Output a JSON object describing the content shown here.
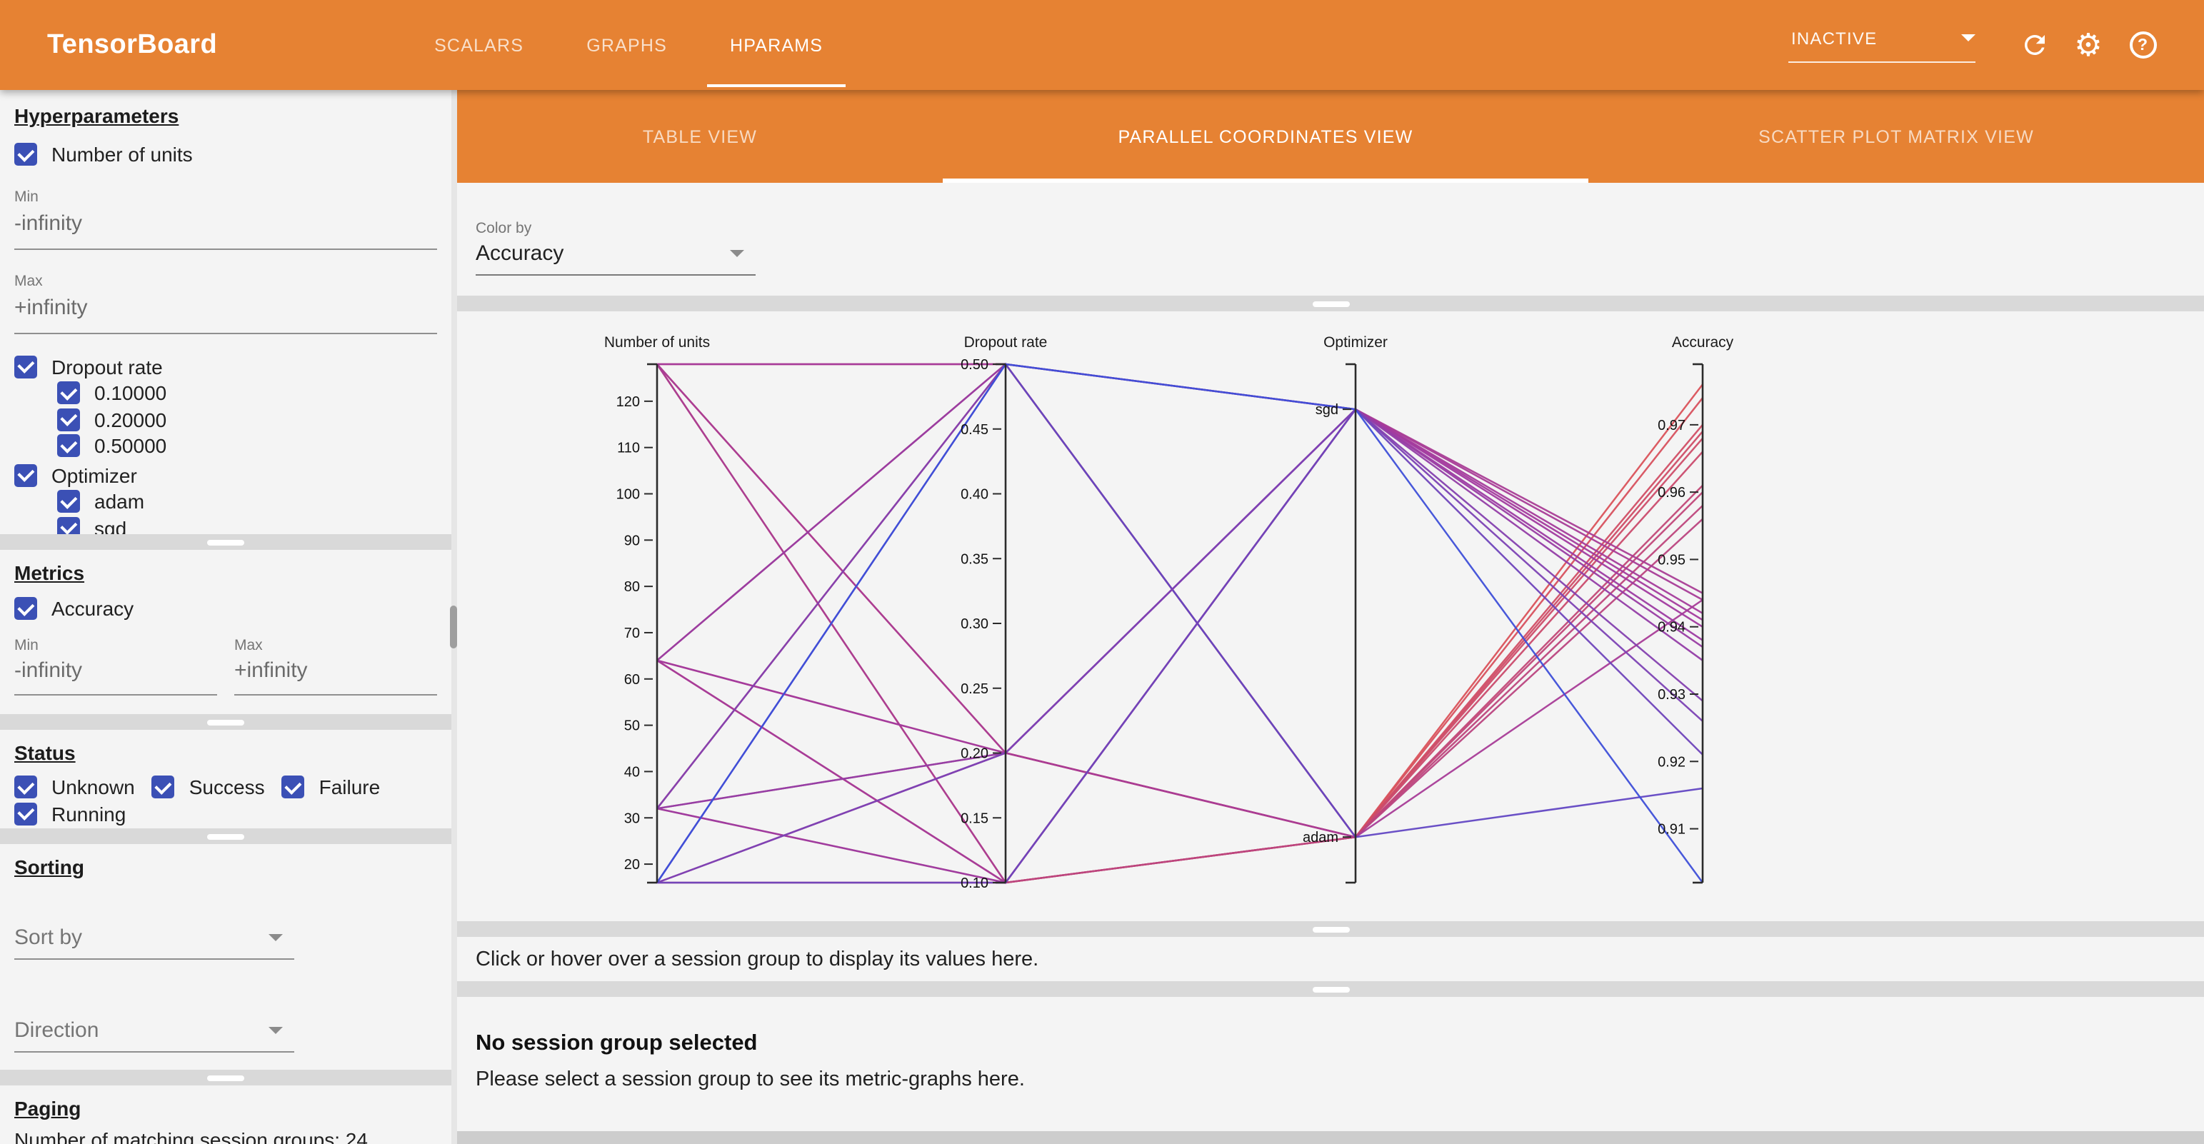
{
  "colors": {
    "accent": "#E68233",
    "checkbox": "#3B50B5",
    "card_bg": "#F4F4F4",
    "divider_bg": "#D9D9D9"
  },
  "toolbar": {
    "title": "TensorBoard",
    "tabs": [
      "SCALARS",
      "GRAPHS",
      "HPARAMS"
    ],
    "active_tab": "HPARAMS",
    "status_dropdown": "INACTIVE",
    "icons": [
      "refresh",
      "settings",
      "help"
    ],
    "help_glyph": "?",
    "gear_glyph": "⚙"
  },
  "sidebar": {
    "hyperparameters": {
      "title": "Hyperparameters",
      "number_of_units": {
        "label": "Number of units",
        "checked": true,
        "min_label": "Min",
        "min": "-infinity",
        "max_label": "Max",
        "max": "+infinity"
      },
      "dropout": {
        "label": "Dropout rate",
        "checked": true,
        "values": [
          "0.10000",
          "0.20000",
          "0.50000"
        ]
      },
      "optimizer": {
        "label": "Optimizer",
        "checked": true,
        "values": [
          "adam",
          "sgd"
        ]
      }
    },
    "metrics": {
      "title": "Metrics",
      "accuracy": {
        "label": "Accuracy",
        "checked": true,
        "min_label": "Min",
        "min": "-infinity",
        "max_label": "Max",
        "max": "+infinity"
      }
    },
    "status": {
      "title": "Status",
      "options": [
        {
          "label": "Unknown",
          "checked": true
        },
        {
          "label": "Success",
          "checked": true
        },
        {
          "label": "Failure",
          "checked": true
        },
        {
          "label": "Running",
          "checked": true
        }
      ]
    },
    "sorting": {
      "title": "Sorting",
      "sort_by_placeholder": "Sort by",
      "direction_placeholder": "Direction"
    },
    "paging": {
      "title": "Paging",
      "summary": "Number of matching session groups: 24"
    }
  },
  "main": {
    "view_tabs": [
      "TABLE VIEW",
      "PARALLEL COORDINATES VIEW",
      "SCATTER PLOT MATRIX VIEW"
    ],
    "active_view_tab": "PARALLEL COORDINATES VIEW",
    "color_by": {
      "label": "Color by",
      "value": "Accuracy"
    },
    "session_hint": "Click or hover over a session group to display its values here.",
    "empty_state": {
      "title": "No session group selected",
      "body": "Please select a session group to see its metric-graphs here."
    }
  },
  "chart_data": {
    "type": "parallel_coordinates",
    "color_by": "Accuracy",
    "legend_position": "none",
    "grid": false,
    "axes": [
      {
        "id": "units",
        "label": "Number of units",
        "type": "linear",
        "domain": [
          16,
          128
        ],
        "ticks": [
          {
            "v": 120,
            "label": "120"
          },
          {
            "v": 110,
            "label": "110"
          },
          {
            "v": 100,
            "label": "100"
          },
          {
            "v": 90,
            "label": "90"
          },
          {
            "v": 80,
            "label": "80"
          },
          {
            "v": 70,
            "label": "70"
          },
          {
            "v": 60,
            "label": "60"
          },
          {
            "v": 50,
            "label": "50"
          },
          {
            "v": 40,
            "label": "40"
          },
          {
            "v": 30,
            "label": "30"
          },
          {
            "v": 20,
            "label": "20"
          }
        ]
      },
      {
        "id": "dropout",
        "label": "Dropout rate",
        "type": "linear",
        "domain": [
          0.1,
          0.5
        ],
        "ticks": [
          {
            "v": 0.5,
            "label": "0.50"
          },
          {
            "v": 0.45,
            "label": "0.45"
          },
          {
            "v": 0.4,
            "label": "0.40"
          },
          {
            "v": 0.35,
            "label": "0.35"
          },
          {
            "v": 0.3,
            "label": "0.30"
          },
          {
            "v": 0.25,
            "label": "0.25"
          },
          {
            "v": 0.2,
            "label": "0.20"
          },
          {
            "v": 0.15,
            "label": "0.15"
          },
          {
            "v": 0.1,
            "label": "0.10"
          }
        ]
      },
      {
        "id": "optimizer",
        "label": "Optimizer",
        "type": "categorical",
        "categories": [
          {
            "v": "sgd",
            "pos": 0.087
          },
          {
            "v": "adam",
            "pos": 0.912
          }
        ]
      },
      {
        "id": "accuracy",
        "label": "Accuracy",
        "type": "linear",
        "domain": [
          0.902,
          0.979
        ],
        "ticks": [
          {
            "v": 0.97,
            "label": "0.97"
          },
          {
            "v": 0.96,
            "label": "0.96"
          },
          {
            "v": 0.95,
            "label": "0.95"
          },
          {
            "v": 0.94,
            "label": "0.94"
          },
          {
            "v": 0.93,
            "label": "0.93"
          },
          {
            "v": 0.92,
            "label": "0.92"
          },
          {
            "v": 0.91,
            "label": "0.91"
          }
        ]
      }
    ],
    "color_scale": {
      "stops": [
        [
          0.902,
          "#3E4FD8"
        ],
        [
          0.9405,
          "#A23A9E"
        ],
        [
          0.979,
          "#DF5454"
        ]
      ]
    },
    "sessions": [
      {
        "units": 128,
        "dropout": 0.2,
        "optimizer": "adam",
        "accuracy": 0.976
      },
      {
        "units": 128,
        "dropout": 0.1,
        "optimizer": "adam",
        "accuracy": 0.974
      },
      {
        "units": 128,
        "dropout": 0.5,
        "optimizer": "adam",
        "accuracy": 0.97
      },
      {
        "units": 64,
        "dropout": 0.1,
        "optimizer": "adam",
        "accuracy": 0.969
      },
      {
        "units": 64,
        "dropout": 0.2,
        "optimizer": "adam",
        "accuracy": 0.968
      },
      {
        "units": 32,
        "dropout": 0.1,
        "optimizer": "adam",
        "accuracy": 0.966
      },
      {
        "units": 64,
        "dropout": 0.5,
        "optimizer": "adam",
        "accuracy": 0.961
      },
      {
        "units": 32,
        "dropout": 0.2,
        "optimizer": "adam",
        "accuracy": 0.96
      },
      {
        "units": 32,
        "dropout": 0.5,
        "optimizer": "adam",
        "accuracy": 0.958
      },
      {
        "units": 16,
        "dropout": 0.1,
        "optimizer": "adam",
        "accuracy": 0.956
      },
      {
        "units": 16,
        "dropout": 0.2,
        "optimizer": "adam",
        "accuracy": 0.944
      },
      {
        "units": 16,
        "dropout": 0.5,
        "optimizer": "adam",
        "accuracy": 0.916
      },
      {
        "units": 128,
        "dropout": 0.1,
        "optimizer": "sgd",
        "accuracy": 0.945
      },
      {
        "units": 128,
        "dropout": 0.2,
        "optimizer": "sgd",
        "accuracy": 0.944
      },
      {
        "units": 64,
        "dropout": 0.1,
        "optimizer": "sgd",
        "accuracy": 0.942
      },
      {
        "units": 128,
        "dropout": 0.5,
        "optimizer": "sgd",
        "accuracy": 0.941
      },
      {
        "units": 64,
        "dropout": 0.2,
        "optimizer": "sgd",
        "accuracy": 0.94
      },
      {
        "units": 32,
        "dropout": 0.1,
        "optimizer": "sgd",
        "accuracy": 0.938
      },
      {
        "units": 64,
        "dropout": 0.5,
        "optimizer": "sgd",
        "accuracy": 0.937
      },
      {
        "units": 32,
        "dropout": 0.2,
        "optimizer": "sgd",
        "accuracy": 0.935
      },
      {
        "units": 32,
        "dropout": 0.5,
        "optimizer": "sgd",
        "accuracy": 0.929
      },
      {
        "units": 16,
        "dropout": 0.2,
        "optimizer": "sgd",
        "accuracy": 0.926
      },
      {
        "units": 16,
        "dropout": 0.1,
        "optimizer": "sgd",
        "accuracy": 0.921
      },
      {
        "units": 16,
        "dropout": 0.5,
        "optimizer": "sgd",
        "accuracy": 0.902
      }
    ]
  }
}
